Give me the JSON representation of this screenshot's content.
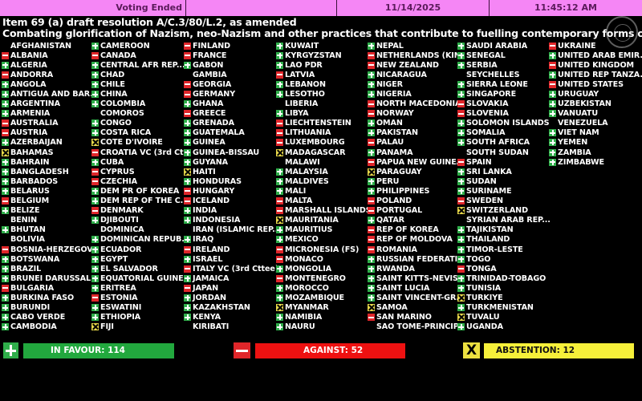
{
  "header": {
    "status": "Voting Ended",
    "date": "11/14/2025",
    "time": "11:45:12 AM"
  },
  "item_title": "Item 69 (a) draft resolution A/C.3/80/L.2, as amended",
  "subject": "Combating glorification of Nazism, neo-Nazism and other practices that contribute to fuelling contemporary forms of",
  "vote_colors": {
    "yes": "#2fae4a",
    "no": "#e0262a",
    "abstain": "#e8d84a"
  },
  "columns": [
    [
      {
        "name": "AFGHANISTAN",
        "vote": ""
      },
      {
        "name": "ALBANIA",
        "vote": "no"
      },
      {
        "name": "ALGERIA",
        "vote": "yes"
      },
      {
        "name": "ANDORRA",
        "vote": "no"
      },
      {
        "name": "ANGOLA",
        "vote": "yes"
      },
      {
        "name": "ANTIGUA AND BAR...",
        "vote": "yes"
      },
      {
        "name": "ARGENTINA",
        "vote": "yes"
      },
      {
        "name": "ARMENIA",
        "vote": "yes"
      },
      {
        "name": "AUSTRALIA",
        "vote": "no"
      },
      {
        "name": "AUSTRIA",
        "vote": "no"
      },
      {
        "name": "AZERBAIJAN",
        "vote": "yes"
      },
      {
        "name": "BAHAMAS",
        "vote": "abstain"
      },
      {
        "name": "BAHRAIN",
        "vote": "yes"
      },
      {
        "name": "BANGLADESH",
        "vote": "yes"
      },
      {
        "name": "BARBADOS",
        "vote": "yes"
      },
      {
        "name": "BELARUS",
        "vote": "yes"
      },
      {
        "name": "BELGIUM",
        "vote": "no"
      },
      {
        "name": "BELIZE",
        "vote": "yes"
      },
      {
        "name": "BENIN",
        "vote": ""
      },
      {
        "name": "BHUTAN",
        "vote": "yes"
      },
      {
        "name": "BOLIVIA",
        "vote": ""
      },
      {
        "name": "BOSNIA-HERZEGOVI...",
        "vote": "no"
      },
      {
        "name": "BOTSWANA",
        "vote": "yes"
      },
      {
        "name": "BRAZIL",
        "vote": "yes"
      },
      {
        "name": "BRUNEI DARUSSAL...",
        "vote": "yes"
      },
      {
        "name": "BULGARIA",
        "vote": "no"
      },
      {
        "name": "BURKINA FASO",
        "vote": "yes"
      },
      {
        "name": "BURUNDI",
        "vote": "yes"
      },
      {
        "name": "CABO VERDE",
        "vote": "yes"
      },
      {
        "name": "CAMBODIA",
        "vote": "yes"
      }
    ],
    [
      {
        "name": "CAMEROON",
        "vote": "yes"
      },
      {
        "name": "CANADA",
        "vote": "no"
      },
      {
        "name": "CENTRAL AFR REP....",
        "vote": "yes"
      },
      {
        "name": "CHAD",
        "vote": "yes"
      },
      {
        "name": "CHILE",
        "vote": "yes"
      },
      {
        "name": "CHINA",
        "vote": "yes"
      },
      {
        "name": "COLOMBIA",
        "vote": "yes"
      },
      {
        "name": "COMOROS",
        "vote": ""
      },
      {
        "name": "CONGO",
        "vote": "yes"
      },
      {
        "name": "COSTA RICA",
        "vote": "yes"
      },
      {
        "name": "COTE D'IVOIRE",
        "vote": "abstain"
      },
      {
        "name": "CROATIA VC (3rd Ct...",
        "vote": "no"
      },
      {
        "name": "CUBA",
        "vote": "yes"
      },
      {
        "name": "CYPRUS",
        "vote": "no"
      },
      {
        "name": "CZECHIA",
        "vote": "no"
      },
      {
        "name": "DEM PR OF KOREA",
        "vote": "yes"
      },
      {
        "name": "DEM REP OF THE C...",
        "vote": "yes"
      },
      {
        "name": "DENMARK",
        "vote": "no"
      },
      {
        "name": "DJIBOUTI",
        "vote": "yes"
      },
      {
        "name": "DOMINICA",
        "vote": ""
      },
      {
        "name": "DOMINICAN REPUB...",
        "vote": "yes"
      },
      {
        "name": "ECUADOR",
        "vote": "yes"
      },
      {
        "name": "EGYPT",
        "vote": "yes"
      },
      {
        "name": "EL SALVADOR",
        "vote": "yes"
      },
      {
        "name": "EQUATORIAL GUINEA",
        "vote": "yes"
      },
      {
        "name": "ERITREA",
        "vote": "yes"
      },
      {
        "name": "ESTONIA",
        "vote": "no"
      },
      {
        "name": "ESWATINI",
        "vote": "yes"
      },
      {
        "name": "ETHIOPIA",
        "vote": "yes"
      },
      {
        "name": "FIJI",
        "vote": "abstain"
      }
    ],
    [
      {
        "name": "FINLAND",
        "vote": "no"
      },
      {
        "name": "FRANCE",
        "vote": "no"
      },
      {
        "name": "GABON",
        "vote": "yes"
      },
      {
        "name": "GAMBIA",
        "vote": ""
      },
      {
        "name": "GEORGIA",
        "vote": "no"
      },
      {
        "name": "GERMANY",
        "vote": "no"
      },
      {
        "name": "GHANA",
        "vote": "yes"
      },
      {
        "name": "GREECE",
        "vote": "no"
      },
      {
        "name": "GRENADA",
        "vote": "yes"
      },
      {
        "name": "GUATEMALA",
        "vote": "yes"
      },
      {
        "name": "GUINEA",
        "vote": "yes"
      },
      {
        "name": "GUINEA-BISSAU",
        "vote": "yes"
      },
      {
        "name": "GUYANA",
        "vote": "yes"
      },
      {
        "name": "HAITI",
        "vote": "abstain"
      },
      {
        "name": "HONDURAS",
        "vote": "yes"
      },
      {
        "name": "HUNGARY",
        "vote": "no"
      },
      {
        "name": "ICELAND",
        "vote": "no"
      },
      {
        "name": "INDIA",
        "vote": "yes"
      },
      {
        "name": "INDONESIA",
        "vote": "yes"
      },
      {
        "name": "IRAN (ISLAMIC REP...",
        "vote": ""
      },
      {
        "name": "IRAQ",
        "vote": "yes"
      },
      {
        "name": "IRELAND",
        "vote": "no"
      },
      {
        "name": "ISRAEL",
        "vote": "yes"
      },
      {
        "name": "ITALY VC (3rd Cttee)",
        "vote": "no"
      },
      {
        "name": "JAMAICA",
        "vote": "yes"
      },
      {
        "name": "JAPAN",
        "vote": "no"
      },
      {
        "name": "JORDAN",
        "vote": "yes"
      },
      {
        "name": "KAZAKHSTAN",
        "vote": "yes"
      },
      {
        "name": "KENYA",
        "vote": "yes"
      },
      {
        "name": "KIRIBATI",
        "vote": ""
      }
    ],
    [
      {
        "name": "KUWAIT",
        "vote": "yes"
      },
      {
        "name": "KYRGYZSTAN",
        "vote": "yes"
      },
      {
        "name": "LAO PDR",
        "vote": "yes"
      },
      {
        "name": "LATVIA",
        "vote": "no"
      },
      {
        "name": "LEBANON",
        "vote": "yes"
      },
      {
        "name": "LESOTHO",
        "vote": "yes"
      },
      {
        "name": "LIBERIA",
        "vote": ""
      },
      {
        "name": "LIBYA",
        "vote": "yes"
      },
      {
        "name": "LIECHTENSTEIN",
        "vote": "no"
      },
      {
        "name": "LITHUANIA",
        "vote": "no"
      },
      {
        "name": "LUXEMBOURG",
        "vote": "no"
      },
      {
        "name": "MADAGASCAR",
        "vote": "abstain"
      },
      {
        "name": "MALAWI",
        "vote": ""
      },
      {
        "name": "MALAYSIA",
        "vote": "yes"
      },
      {
        "name": "MALDIVES",
        "vote": "yes"
      },
      {
        "name": "MALI",
        "vote": "yes"
      },
      {
        "name": "MALTA",
        "vote": "no"
      },
      {
        "name": "MARSHALL ISLANDS",
        "vote": "no"
      },
      {
        "name": "MAURITANIA",
        "vote": "abstain"
      },
      {
        "name": "MAURITIUS",
        "vote": "yes"
      },
      {
        "name": "MEXICO",
        "vote": "yes"
      },
      {
        "name": "MICRONESIA (FS)",
        "vote": "no"
      },
      {
        "name": "MONACO",
        "vote": "no"
      },
      {
        "name": "MONGOLIA",
        "vote": "yes"
      },
      {
        "name": "MONTENEGRO",
        "vote": "no"
      },
      {
        "name": "MOROCCO",
        "vote": "yes"
      },
      {
        "name": "MOZAMBIQUE",
        "vote": "yes"
      },
      {
        "name": "MYANMAR",
        "vote": "abstain"
      },
      {
        "name": "NAMIBIA",
        "vote": "yes"
      },
      {
        "name": "NAURU",
        "vote": "yes"
      }
    ],
    [
      {
        "name": "NEPAL",
        "vote": "yes"
      },
      {
        "name": "NETHERLANDS (KIN...",
        "vote": "no"
      },
      {
        "name": "NEW ZEALAND",
        "vote": "no"
      },
      {
        "name": "NICARAGUA",
        "vote": "yes"
      },
      {
        "name": "NIGER",
        "vote": "yes"
      },
      {
        "name": "NIGERIA",
        "vote": "yes"
      },
      {
        "name": "NORTH MACEDONIA",
        "vote": "no"
      },
      {
        "name": "NORWAY",
        "vote": "no"
      },
      {
        "name": "OMAN",
        "vote": "yes"
      },
      {
        "name": "PAKISTAN",
        "vote": "yes"
      },
      {
        "name": "PALAU",
        "vote": "no"
      },
      {
        "name": "PANAMA",
        "vote": "yes"
      },
      {
        "name": "PAPUA NEW GUINEA",
        "vote": "no"
      },
      {
        "name": "PARAGUAY",
        "vote": "abstain"
      },
      {
        "name": "PERU",
        "vote": "yes"
      },
      {
        "name": "PHILIPPINES",
        "vote": "yes"
      },
      {
        "name": "POLAND",
        "vote": "no"
      },
      {
        "name": "PORTUGAL",
        "vote": "no"
      },
      {
        "name": "QATAR",
        "vote": "yes"
      },
      {
        "name": "REP OF KOREA",
        "vote": "no"
      },
      {
        "name": "REP OF MOLDOVA",
        "vote": "no"
      },
      {
        "name": "ROMANIA",
        "vote": "no"
      },
      {
        "name": "RUSSIAN FEDERATI...",
        "vote": "yes"
      },
      {
        "name": "RWANDA",
        "vote": "yes"
      },
      {
        "name": "SAINT KITTS-NEVIS",
        "vote": "yes"
      },
      {
        "name": "SAINT LUCIA",
        "vote": "yes"
      },
      {
        "name": "SAINT VINCENT-GR...",
        "vote": "yes"
      },
      {
        "name": "SAMOA",
        "vote": "abstain"
      },
      {
        "name": "SAN MARINO",
        "vote": "no"
      },
      {
        "name": "SAO TOME-PRINCIPE",
        "vote": ""
      }
    ],
    [
      {
        "name": "SAUDI ARABIA",
        "vote": "yes"
      },
      {
        "name": "SENEGAL",
        "vote": "yes"
      },
      {
        "name": "SERBIA",
        "vote": "yes"
      },
      {
        "name": "SEYCHELLES",
        "vote": ""
      },
      {
        "name": "SIERRA LEONE",
        "vote": "yes"
      },
      {
        "name": "SINGAPORE",
        "vote": "yes"
      },
      {
        "name": "SLOVAKIA",
        "vote": "no"
      },
      {
        "name": "SLOVENIA",
        "vote": "no"
      },
      {
        "name": "SOLOMON ISLANDS",
        "vote": "yes"
      },
      {
        "name": "SOMALIA",
        "vote": "yes"
      },
      {
        "name": "SOUTH AFRICA",
        "vote": "yes"
      },
      {
        "name": "SOUTH SUDAN",
        "vote": ""
      },
      {
        "name": "SPAIN",
        "vote": "no"
      },
      {
        "name": "SRI LANKA",
        "vote": "yes"
      },
      {
        "name": "SUDAN",
        "vote": "yes"
      },
      {
        "name": "SURINAME",
        "vote": "yes"
      },
      {
        "name": "SWEDEN",
        "vote": "no"
      },
      {
        "name": "SWITZERLAND",
        "vote": "abstain"
      },
      {
        "name": "SYRIAN ARAB REP...",
        "vote": ""
      },
      {
        "name": "TAJIKISTAN",
        "vote": "yes"
      },
      {
        "name": "THAILAND",
        "vote": "yes"
      },
      {
        "name": "TIMOR-LESTE",
        "vote": "yes"
      },
      {
        "name": "TOGO",
        "vote": "yes"
      },
      {
        "name": "TONGA",
        "vote": "no"
      },
      {
        "name": "TRINIDAD-TOBAGO",
        "vote": "yes"
      },
      {
        "name": "TUNISIA",
        "vote": "yes"
      },
      {
        "name": "TURKIYE",
        "vote": "abstain"
      },
      {
        "name": "TURKMENISTAN",
        "vote": "yes"
      },
      {
        "name": "TUVALU",
        "vote": "abstain"
      },
      {
        "name": "UGANDA",
        "vote": "yes"
      }
    ],
    [
      {
        "name": "UKRAINE",
        "vote": "no"
      },
      {
        "name": "UNITED ARAB EMIR...",
        "vote": "yes"
      },
      {
        "name": "UNITED KINGDOM",
        "vote": "no"
      },
      {
        "name": "UNITED REP TANZA...",
        "vote": "yes"
      },
      {
        "name": "UNITED STATES",
        "vote": "no"
      },
      {
        "name": "URUGUAY",
        "vote": "yes"
      },
      {
        "name": "UZBEKISTAN",
        "vote": "yes"
      },
      {
        "name": "VANUATU",
        "vote": "yes"
      },
      {
        "name": "VENEZUELA",
        "vote": ""
      },
      {
        "name": "VIET NAM",
        "vote": "yes"
      },
      {
        "name": "YEMEN",
        "vote": "yes"
      },
      {
        "name": "ZAMBIA",
        "vote": "yes"
      },
      {
        "name": "ZIMBABWE",
        "vote": "yes"
      }
    ]
  ],
  "totals": {
    "in_favour": "IN FAVOUR: 114",
    "against": "AGAINST: 52",
    "abstention": "ABSTENTION: 12",
    "abstain_symbol": "X"
  }
}
